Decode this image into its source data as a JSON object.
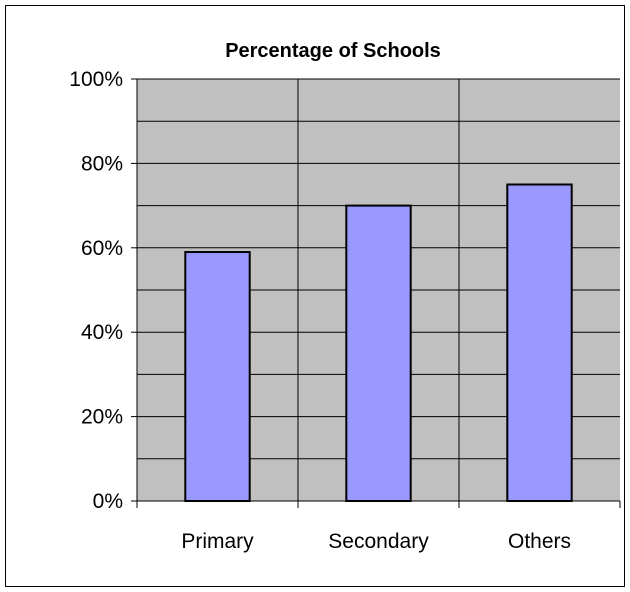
{
  "chart_data": {
    "type": "bar",
    "title": "Percentage of Schools",
    "xlabel": "",
    "ylabel": "",
    "categories": [
      "Primary",
      "Secondary",
      "Others"
    ],
    "values": [
      59,
      70,
      75
    ],
    "ylim": [
      0,
      100
    ],
    "y_ticks": [
      "0%",
      "20%",
      "40%",
      "60%",
      "80%",
      "100%"
    ],
    "grid": true,
    "legend": "none",
    "colors": {
      "bar_fill": "#9999ff",
      "bar_stroke": "#000000",
      "plot_background": "#c0c0c0",
      "grid_line": "#000000"
    }
  }
}
